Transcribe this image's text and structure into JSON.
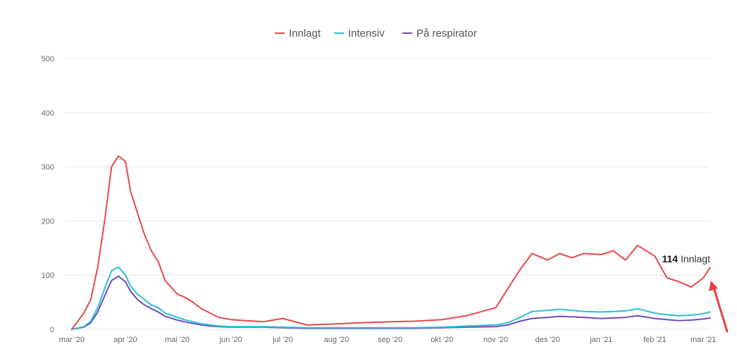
{
  "chart_data": {
    "type": "line",
    "title": "",
    "xlabel": "",
    "ylabel": "",
    "ylim": [
      0,
      500
    ],
    "yticks": [
      0,
      100,
      200,
      300,
      400,
      500
    ],
    "grid": true,
    "legend_position": "top-center",
    "x_tick_labels": [
      "mar '20",
      "apr '20",
      "mai '20",
      "jun '20",
      "jul '20",
      "aug '20",
      "sep '20",
      "okt '20",
      "nov '20",
      "des '20",
      "jan '21",
      "feb '21",
      "mar '21"
    ],
    "x": [
      "2020-03-01",
      "2020-03-08",
      "2020-03-12",
      "2020-03-16",
      "2020-03-20",
      "2020-03-24",
      "2020-03-28",
      "2020-04-01",
      "2020-04-04",
      "2020-04-08",
      "2020-04-12",
      "2020-04-16",
      "2020-04-20",
      "2020-04-24",
      "2020-05-01",
      "2020-05-05",
      "2020-05-10",
      "2020-05-15",
      "2020-05-20",
      "2020-05-25",
      "2020-06-01",
      "2020-06-10",
      "2020-06-20",
      "2020-07-01",
      "2020-07-15",
      "2020-08-01",
      "2020-08-15",
      "2020-09-01",
      "2020-09-15",
      "2020-10-01",
      "2020-10-15",
      "2020-11-01",
      "2020-11-08",
      "2020-11-15",
      "2020-11-22",
      "2020-12-01",
      "2020-12-08",
      "2020-12-15",
      "2020-12-22",
      "2021-01-01",
      "2021-01-08",
      "2021-01-15",
      "2021-01-22",
      "2021-02-01",
      "2021-02-08",
      "2021-02-15",
      "2021-02-22",
      "2021-03-01",
      "2021-03-05"
    ],
    "series": [
      {
        "name": "Innlagt",
        "color": "#e64a4a",
        "values": [
          0,
          30,
          55,
          115,
          200,
          300,
          320,
          310,
          255,
          215,
          175,
          145,
          125,
          90,
          65,
          60,
          50,
          38,
          30,
          22,
          18,
          16,
          14,
          20,
          8,
          10,
          12,
          14,
          15,
          18,
          25,
          40,
          75,
          110,
          140,
          128,
          140,
          132,
          140,
          138,
          145,
          128,
          155,
          135,
          95,
          88,
          78,
          95,
          114
        ]
      },
      {
        "name": "Intensiv",
        "color": "#2bc0d4",
        "values": [
          0,
          5,
          15,
          40,
          75,
          108,
          115,
          100,
          80,
          65,
          55,
          45,
          40,
          30,
          22,
          18,
          14,
          10,
          8,
          6,
          5,
          5,
          5,
          4,
          3,
          3,
          3,
          3,
          3,
          4,
          6,
          8,
          12,
          22,
          33,
          35,
          37,
          35,
          33,
          32,
          33,
          34,
          38,
          30,
          27,
          25,
          26,
          29,
          32
        ]
      },
      {
        "name": "På respirator",
        "color": "#6f4cc0",
        "values": [
          0,
          4,
          12,
          32,
          62,
          90,
          98,
          88,
          70,
          55,
          45,
          38,
          32,
          24,
          17,
          14,
          11,
          8,
          6,
          5,
          4,
          4,
          4,
          3,
          2,
          2,
          2,
          2,
          2,
          3,
          4,
          5,
          8,
          15,
          20,
          22,
          24,
          23,
          22,
          20,
          21,
          22,
          25,
          20,
          18,
          16,
          17,
          19,
          21
        ]
      }
    ],
    "annotation": {
      "value": "114",
      "label": "Innlagt"
    }
  }
}
